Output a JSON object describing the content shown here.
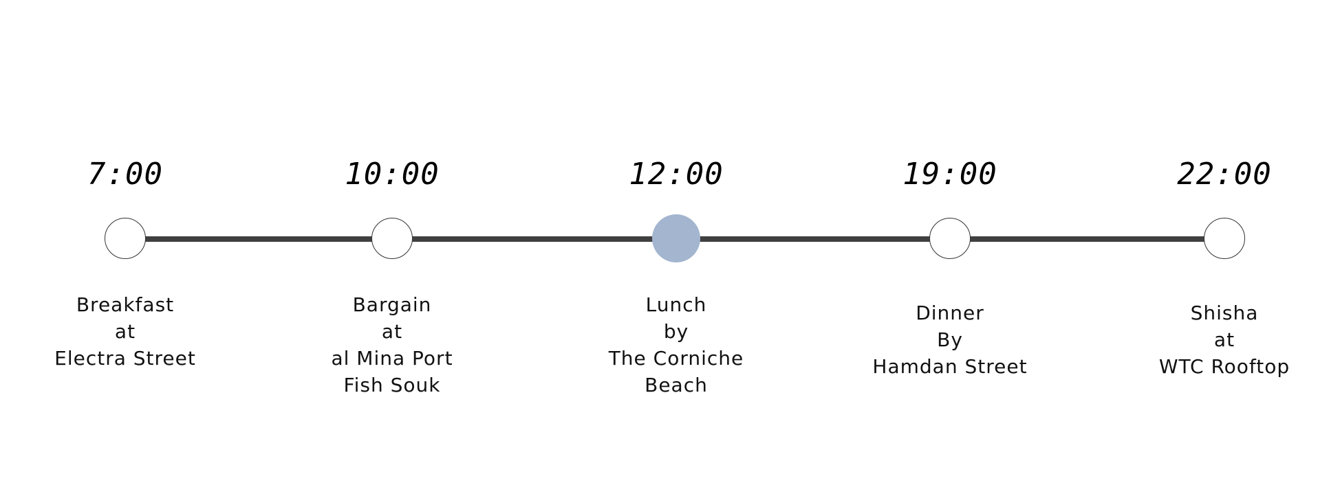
{
  "accent_color": "#a3b5cf",
  "events": [
    {
      "time": "7:00",
      "lines": [
        "Breakfast",
        "at",
        "Electra Street"
      ],
      "active": false
    },
    {
      "time": "10:00",
      "lines": [
        "Bargain",
        "at",
        "al Mina Port",
        "Fish Souk"
      ],
      "active": false
    },
    {
      "time": "12:00",
      "lines": [
        "Lunch",
        "by",
        "The Corniche",
        "Beach"
      ],
      "active": true
    },
    {
      "time": "19:00",
      "lines": [
        "Dinner",
        "By",
        "Hamdan Street"
      ],
      "active": false
    },
    {
      "time": "22:00",
      "lines": [
        "Shisha",
        "at",
        "WTC Rooftop"
      ],
      "active": false
    }
  ]
}
